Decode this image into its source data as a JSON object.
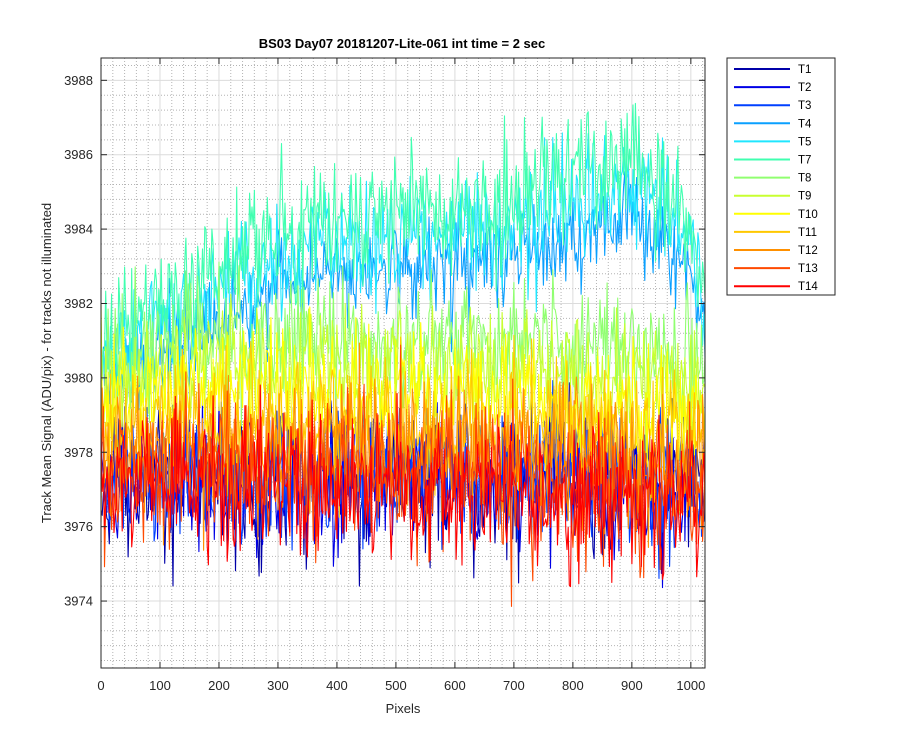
{
  "chart_data": {
    "type": "line",
    "title": "BS03 Day07 20181207-Lite-061 int time = 2 sec",
    "xlabel": "Pixels",
    "ylabel": "Track Mean Signal (ADU/pix) - for tracks not illuminated",
    "xlim": [
      0,
      1024
    ],
    "ylim": [
      3972.2,
      3988.6
    ],
    "xticks": [
      0,
      100,
      200,
      300,
      400,
      500,
      600,
      700,
      800,
      900,
      1000
    ],
    "yticks": [
      3974,
      3976,
      3978,
      3980,
      3982,
      3984,
      3986,
      3988
    ],
    "grid": "major solid + minor dotted",
    "legend_position": "outside-top-right",
    "series": [
      {
        "name": "T1",
        "color": "#0000a8",
        "mean_profile_x": [
          0,
          200,
          500,
          800,
          1000,
          1024
        ],
        "mean_profile_y": [
          3977.0,
          3977.1,
          3977.2,
          3977.1,
          3976.9,
          3976.8
        ],
        "noise_amplitude": 0.9
      },
      {
        "name": "T2",
        "color": "#0000e6",
        "mean_profile_x": [
          0,
          200,
          500,
          800,
          1000,
          1024
        ],
        "mean_profile_y": [
          3977.1,
          3977.2,
          3977.3,
          3977.2,
          3977.0,
          3976.9
        ],
        "noise_amplitude": 0.9
      },
      {
        "name": "T3",
        "color": "#0040ff",
        "mean_profile_x": [
          0,
          200,
          500,
          800,
          1000,
          1024
        ],
        "mean_profile_y": [
          3977.2,
          3977.3,
          3977.4,
          3977.3,
          3977.1,
          3977.0
        ],
        "noise_amplitude": 0.9
      },
      {
        "name": "T4",
        "color": "#0aa0ff",
        "mean_profile_x": [
          0,
          100,
          300,
          500,
          700,
          800,
          900,
          1000,
          1024
        ],
        "mean_profile_y": [
          3979.8,
          3980.6,
          3982.5,
          3983.1,
          3983.3,
          3983.8,
          3984.4,
          3983.0,
          3981.2
        ],
        "noise_amplitude": 0.6
      },
      {
        "name": "T5",
        "color": "#20e6ff",
        "mean_profile_x": [
          0,
          100,
          300,
          500,
          700,
          800,
          900,
          1000,
          1024
        ],
        "mean_profile_y": [
          3980.5,
          3981.5,
          3983.2,
          3983.8,
          3984.1,
          3984.7,
          3985.4,
          3983.8,
          3981.8
        ],
        "noise_amplitude": 0.7
      },
      {
        "name": "T7",
        "color": "#40ffb0",
        "mean_profile_x": [
          0,
          100,
          300,
          500,
          700,
          800,
          900,
          1000,
          1024
        ],
        "mean_profile_y": [
          3981.0,
          3982.0,
          3983.8,
          3984.5,
          3984.8,
          3985.5,
          3986.0,
          3984.0,
          3982.0
        ],
        "noise_amplitude": 0.8
      },
      {
        "name": "T8",
        "color": "#90ff70",
        "mean_profile_x": [
          0,
          200,
          500,
          800,
          1000,
          1024
        ],
        "mean_profile_y": [
          3980.2,
          3981.0,
          3981.1,
          3980.9,
          3980.5,
          3980.0
        ],
        "noise_amplitude": 0.8
      },
      {
        "name": "T9",
        "color": "#c8ff30",
        "mean_profile_x": [
          0,
          200,
          500,
          800,
          1000,
          1024
        ],
        "mean_profile_y": [
          3979.8,
          3980.3,
          3980.3,
          3980.1,
          3979.9,
          3979.6
        ],
        "noise_amplitude": 0.8
      },
      {
        "name": "T10",
        "color": "#ffff00",
        "mean_profile_x": [
          0,
          200,
          500,
          800,
          1000,
          1024
        ],
        "mean_profile_y": [
          3979.4,
          3979.7,
          3979.6,
          3979.4,
          3979.2,
          3979.0
        ],
        "noise_amplitude": 0.8
      },
      {
        "name": "T11",
        "color": "#ffc800",
        "mean_profile_x": [
          0,
          200,
          500,
          800,
          1000,
          1024
        ],
        "mean_profile_y": [
          3978.6,
          3978.8,
          3978.8,
          3978.6,
          3978.4,
          3978.2
        ],
        "noise_amplitude": 0.9
      },
      {
        "name": "T12",
        "color": "#ff9000",
        "mean_profile_x": [
          0,
          200,
          500,
          800,
          1000,
          1024
        ],
        "mean_profile_y": [
          3977.9,
          3978.0,
          3978.0,
          3977.8,
          3977.6,
          3977.5
        ],
        "noise_amplitude": 0.9
      },
      {
        "name": "T13",
        "color": "#ff4a00",
        "mean_profile_x": [
          0,
          200,
          500,
          800,
          1000,
          1024
        ],
        "mean_profile_y": [
          3977.4,
          3977.4,
          3977.4,
          3977.2,
          3977.0,
          3976.9
        ],
        "noise_amplitude": 1.0
      },
      {
        "name": "T14",
        "color": "#ff0000",
        "mean_profile_x": [
          0,
          200,
          500,
          800,
          1000,
          1024
        ],
        "mean_profile_y": [
          3977.2,
          3977.2,
          3977.1,
          3976.9,
          3976.7,
          3976.6
        ],
        "noise_amplitude": 1.0
      }
    ]
  }
}
